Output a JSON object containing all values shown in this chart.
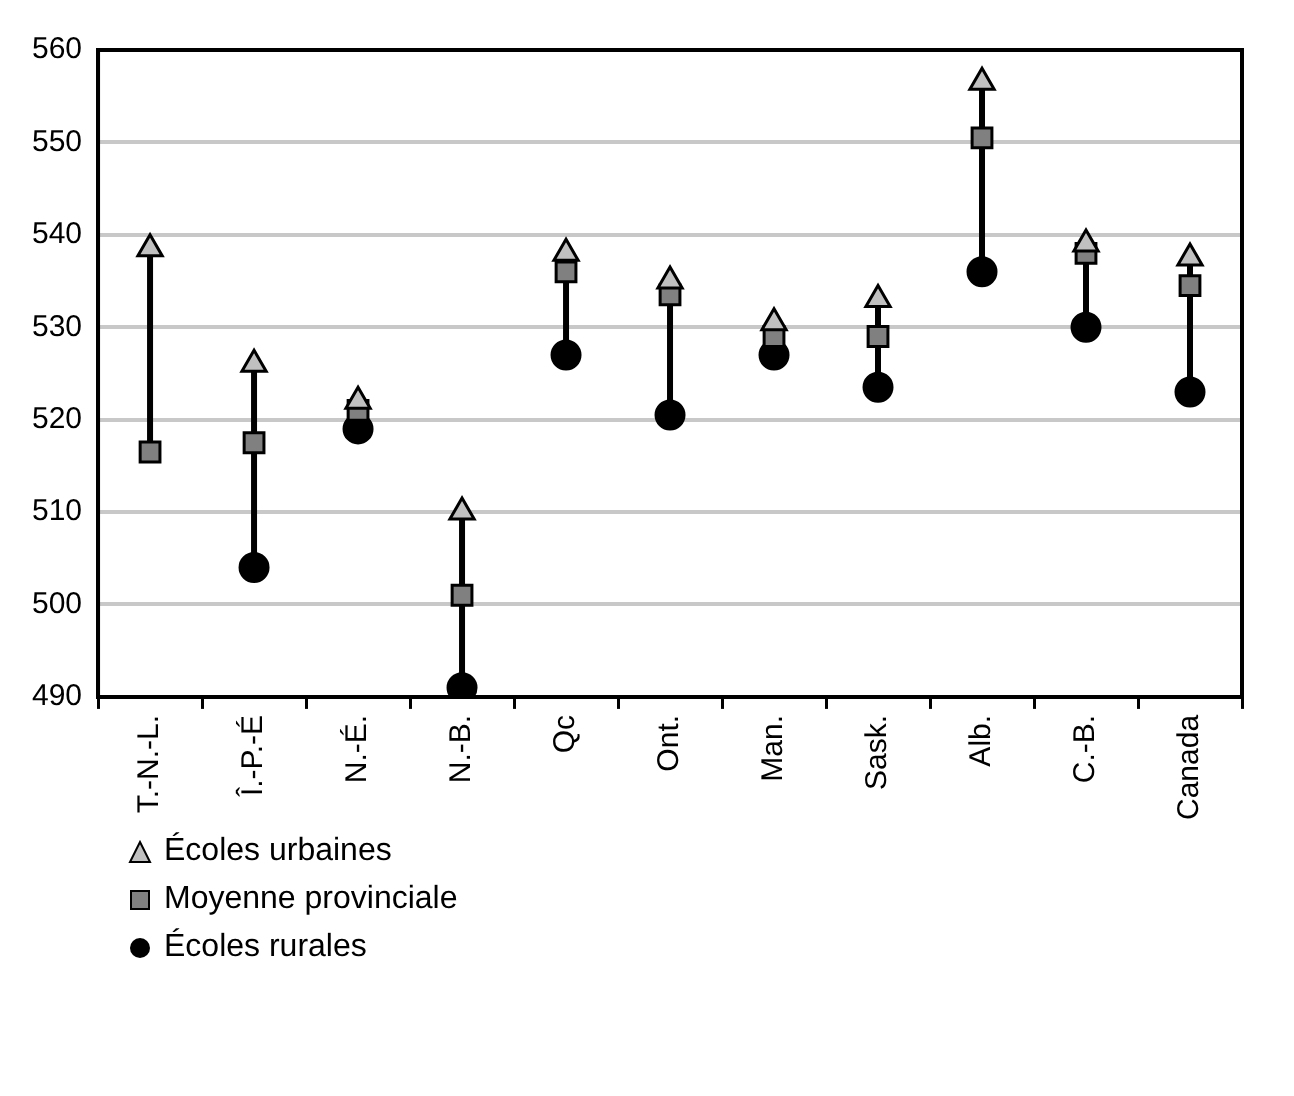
{
  "chart_data": {
    "type": "scatter",
    "categories": [
      "T.-N.-L.",
      "Î.-P.-É",
      "N.-É.",
      "N.-B.",
      "Qc",
      "Ont.",
      "Man.",
      "Sask.",
      "Alb.",
      "C.-B.",
      "Canada"
    ],
    "series": [
      {
        "name": "Écoles urbaines",
        "color": "#c0c0c0",
        "marker": "triangle",
        "values": [
          538.5,
          526,
          522,
          510,
          538,
          535,
          530.5,
          533,
          556.5,
          539,
          537.5
        ]
      },
      {
        "name": "Moyenne provinciale",
        "color": "#808080",
        "marker": "square",
        "values": [
          516.5,
          517.5,
          521,
          501,
          536,
          533.5,
          529,
          529,
          550.5,
          538,
          534.5
        ]
      },
      {
        "name": "Écoles rurales",
        "color": "#000000",
        "marker": "circle",
        "values": [
          null,
          504,
          519,
          491,
          527,
          520.5,
          527,
          523.5,
          536,
          530,
          523
        ]
      }
    ],
    "ylim": [
      490,
      560
    ],
    "yticks": [
      490,
      500,
      510,
      520,
      530,
      540,
      550,
      560
    ],
    "grid": "y",
    "legend": "bottom left"
  }
}
